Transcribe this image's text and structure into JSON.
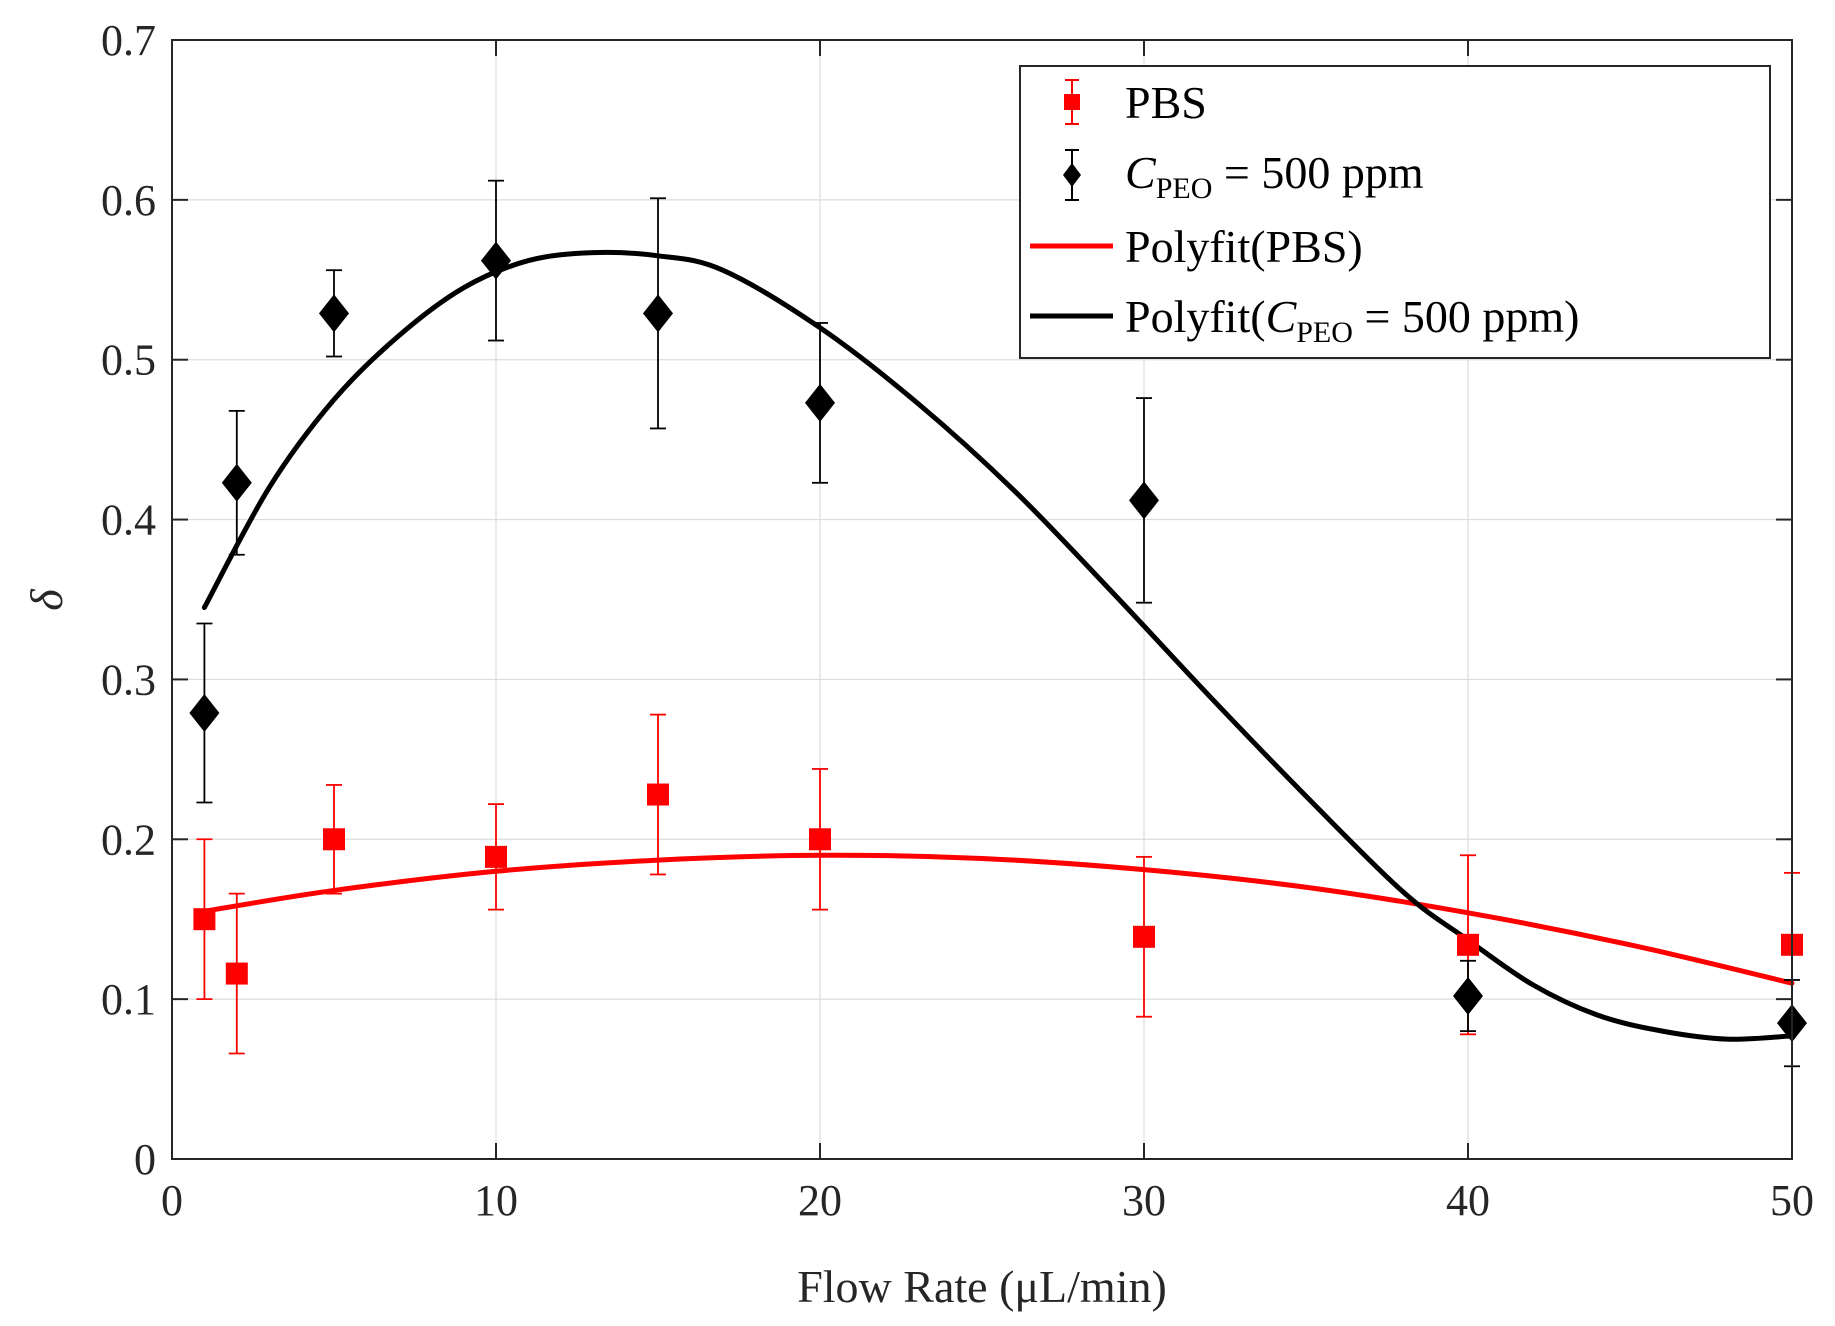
{
  "chart_data": {
    "type": "scatter",
    "title": "",
    "xlabel": "Flow Rate (μL/min)",
    "ylabel": "δ",
    "xlim": [
      0,
      50
    ],
    "ylim": [
      0,
      0.7
    ],
    "xticks": [
      0,
      10,
      20,
      30,
      40,
      50
    ],
    "yticks": [
      0,
      0.1,
      0.2,
      0.3,
      0.4,
      0.5,
      0.6,
      0.7
    ],
    "grid": true,
    "legend_position": "top-right",
    "colors": {
      "pbs": "#ff0000",
      "peo": "#000000",
      "axis": "#262626",
      "grid": "#dcdcdc"
    },
    "series": [
      {
        "name": "PBS",
        "marker": "square",
        "color": "#ff0000",
        "x": [
          1,
          2,
          5,
          10,
          15,
          20,
          30,
          40,
          50
        ],
        "y": [
          0.15,
          0.116,
          0.2,
          0.189,
          0.228,
          0.2,
          0.139,
          0.134,
          0.134
        ],
        "err": [
          0.05,
          0.05,
          0.034,
          0.033,
          0.05,
          0.044,
          0.05,
          0.056,
          0.045
        ]
      },
      {
        "name": "C_PEO = 500 ppm",
        "marker": "diamond",
        "color": "#000000",
        "x": [
          1,
          2,
          5,
          10,
          15,
          20,
          30,
          40,
          50
        ],
        "y": [
          0.279,
          0.423,
          0.529,
          0.562,
          0.529,
          0.473,
          0.412,
          0.102,
          0.085
        ],
        "err": [
          0.056,
          0.045,
          0.027,
          0.05,
          0.072,
          0.05,
          0.064,
          0.022,
          0.027
        ]
      }
    ],
    "fits": [
      {
        "name": "Polyfit(PBS)",
        "color": "#ff0000",
        "x": [
          1,
          5,
          10,
          15,
          20,
          25,
          30,
          35,
          40,
          45,
          50
        ],
        "y": [
          0.155,
          0.168,
          0.18,
          0.187,
          0.19,
          0.188,
          0.181,
          0.17,
          0.154,
          0.134,
          0.11
        ]
      },
      {
        "name": "Polyfit(C_PEO = 500 ppm)",
        "color": "#000000",
        "x": [
          1,
          3,
          5,
          7,
          9,
          11,
          13,
          15,
          17,
          20,
          23,
          26,
          29,
          32,
          35,
          38,
          40,
          42,
          44,
          46,
          48,
          50
        ],
        "y": [
          0.345,
          0.42,
          0.475,
          0.515,
          0.545,
          0.562,
          0.567,
          0.565,
          0.556,
          0.52,
          0.473,
          0.418,
          0.355,
          0.29,
          0.227,
          0.167,
          0.137,
          0.109,
          0.09,
          0.08,
          0.075,
          0.077
        ]
      }
    ],
    "legend": {
      "pbs": "PBS",
      "peo_symbol": "C",
      "peo_sub": "PEO",
      "peo_rest": " = 500 ppm",
      "fit_pbs": "Polyfit(PBS)",
      "fit_peo_prefix": "Polyfit(",
      "fit_peo_symbol": "C",
      "fit_peo_sub": "PEO",
      "fit_peo_rest": " = 500 ppm)"
    }
  }
}
